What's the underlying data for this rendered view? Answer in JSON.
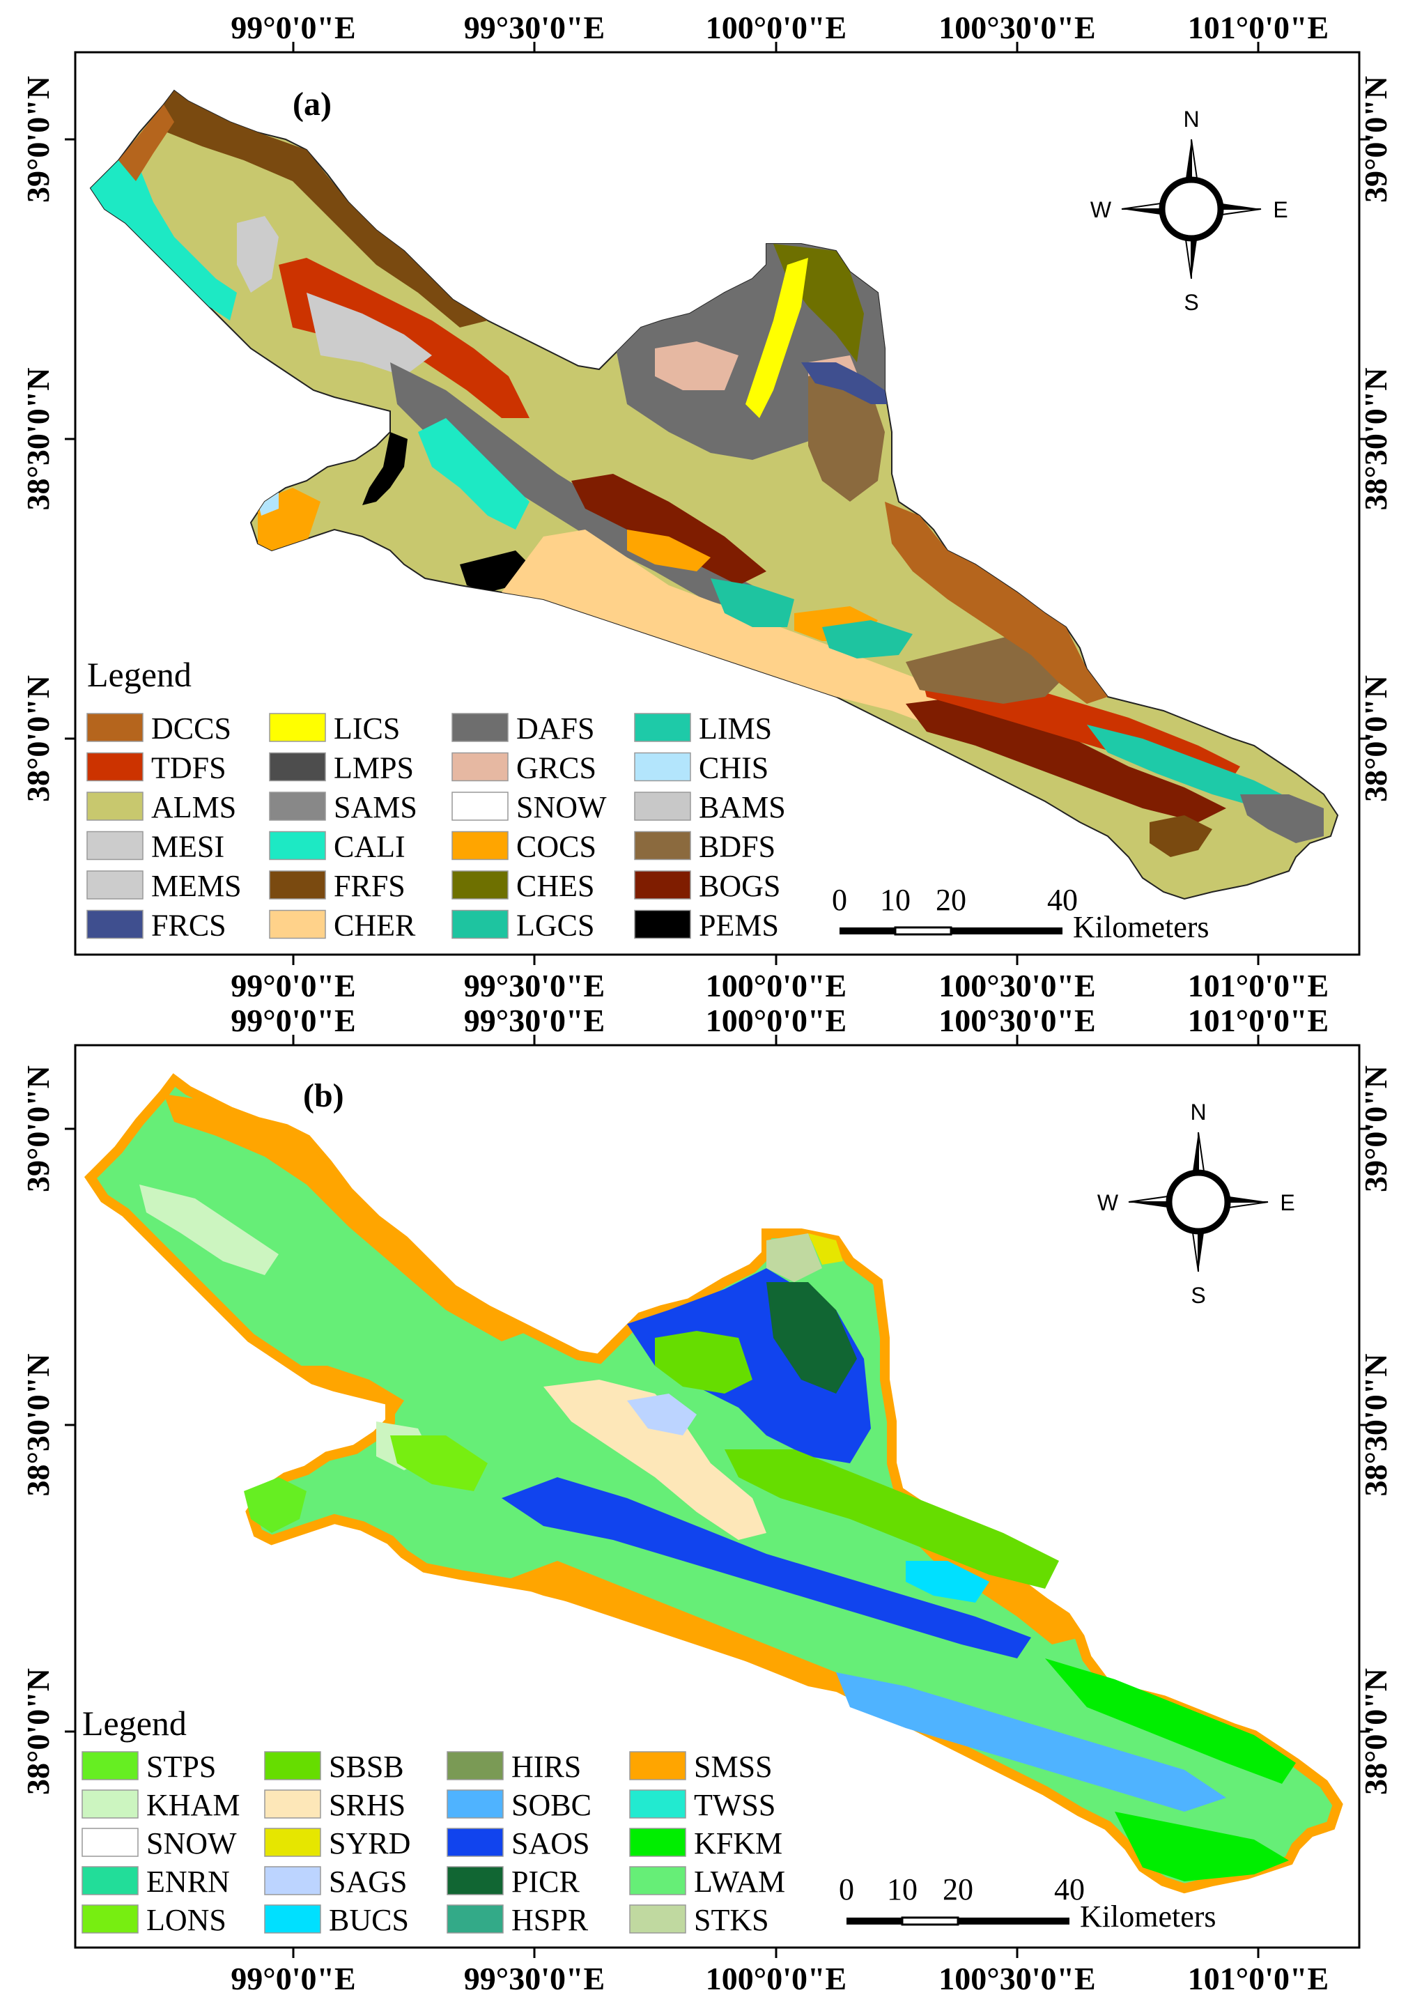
{
  "figure": {
    "panels": [
      {
        "id": "a",
        "label": "(a)",
        "legend_title": "Legend",
        "legend_items": [
          {
            "code": "DCCS",
            "color": "#b5651d"
          },
          {
            "code": "TDFS",
            "color": "#cc3300"
          },
          {
            "code": "ALMS",
            "color": "#c8c86e"
          },
          {
            "code": "MESI",
            "color": "#cccccc"
          },
          {
            "code": "MEMS",
            "color": "#cccccc"
          },
          {
            "code": "FRCS",
            "color": "#3f4f8f"
          },
          {
            "code": "LICS",
            "color": "#ffff00"
          },
          {
            "code": "LMPS",
            "color": "#4d4d4d"
          },
          {
            "code": "SAMS",
            "color": "#888888"
          },
          {
            "code": "CALI",
            "color": "#1de9c4"
          },
          {
            "code": "FRFS",
            "color": "#7a4a10"
          },
          {
            "code": "CHER",
            "color": "#ffd28a"
          },
          {
            "code": "DAFS",
            "color": "#6e6e6e"
          },
          {
            "code": "GRCS",
            "color": "#e6b8a2"
          },
          {
            "code": "SNOW",
            "color": "#ffffff"
          },
          {
            "code": "COCS",
            "color": "#ffa500"
          },
          {
            "code": "CHES",
            "color": "#6e7000"
          },
          {
            "code": "LGCS",
            "color": "#1ec4a0"
          },
          {
            "code": "LIMS",
            "color": "#1ecaa8"
          },
          {
            "code": "CHIS",
            "color": "#b3e5fc"
          },
          {
            "code": "BAMS",
            "color": "#c8c8c8"
          },
          {
            "code": "BDFS",
            "color": "#8b6a3e"
          },
          {
            "code": "BOGS",
            "color": "#7f1d00"
          },
          {
            "code": "PEMS",
            "color": "#000000"
          }
        ],
        "top_axis": [
          "99°0'0\"E",
          "99°30'0\"E",
          "100°0'0\"E",
          "100°30'0\"E",
          "101°0'0\"E"
        ],
        "bottom_axis": [
          "99°0'0\"E",
          "99°30'0\"E",
          "100°0'0\"E",
          "100°30'0\"E",
          "101°0'0\"E"
        ],
        "left_axis": [
          "39°0'0\"N",
          "38°30'0\"N",
          "38°0'0\"N"
        ],
        "right_axis": [
          "39°0'0\"N",
          "38°30'0\"N",
          "38°0'0\"N"
        ]
      },
      {
        "id": "b",
        "label": "(b)",
        "legend_title": "Legend",
        "legend_items": [
          {
            "code": "STPS",
            "color": "#66ee22"
          },
          {
            "code": "KHAM",
            "color": "#ccf5c0"
          },
          {
            "code": "SNOW",
            "color": "#ffffff"
          },
          {
            "code": "ENRN",
            "color": "#22dd99"
          },
          {
            "code": "LONS",
            "color": "#77ee11"
          },
          {
            "code": "SBSB",
            "color": "#66dd00"
          },
          {
            "code": "SRHS",
            "color": "#fde7b8"
          },
          {
            "code": "SYRD",
            "color": "#e6e600"
          },
          {
            "code": "SAGS",
            "color": "#bcd4ff"
          },
          {
            "code": "BUCS",
            "color": "#00e0ff"
          },
          {
            "code": "HIRS",
            "color": "#7a9a55"
          },
          {
            "code": "SOBC",
            "color": "#4fb3ff"
          },
          {
            "code": "SAOS",
            "color": "#1144ee"
          },
          {
            "code": "PICR",
            "color": "#116633"
          },
          {
            "code": "HSPR",
            "color": "#33aa88"
          },
          {
            "code": "SMSS",
            "color": "#ffa500"
          },
          {
            "code": "TWSS",
            "color": "#22ead0"
          },
          {
            "code": "KFKM",
            "color": "#00ee00"
          },
          {
            "code": "LWAM",
            "color": "#66ee77"
          },
          {
            "code": "STKS",
            "color": "#c0d9a0"
          }
        ],
        "top_axis": [
          "99°0'0\"E",
          "99°30'0\"E",
          "100°0'0\"E",
          "100°30'0\"E",
          "101°0'0\"E"
        ],
        "bottom_axis": [
          "99°0'0\"E",
          "99°30'0\"E",
          "100°0'0\"E",
          "100°30'0\"E",
          "101°0'0\"E"
        ],
        "left_axis": [
          "39°0'0\"N",
          "38°30'0\"N",
          "38°0'0\"N"
        ],
        "right_axis": [
          "39°0'0\"N",
          "38°30'0\"N",
          "38°0'0\"N"
        ]
      }
    ],
    "compass": {
      "n": "N",
      "e": "E",
      "s": "S",
      "w": "W"
    },
    "scale_bar": {
      "ticks": [
        "0",
        "10",
        "20",
        "40"
      ],
      "unit": "Kilometers"
    }
  }
}
